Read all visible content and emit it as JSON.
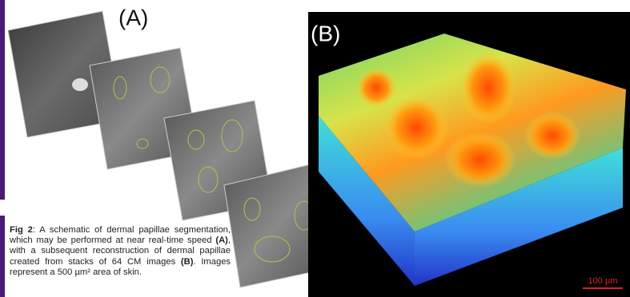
{
  "panel_a": {
    "label": "(A)"
  },
  "panel_b": {
    "label": "(B)",
    "scale_bar": "100 µm"
  },
  "caption": {
    "fig": "Fig 2",
    "text_1": ": A schematic of dermal papillae segmentation, which may be performed at near real-time speed ",
    "ref_a": "(A)",
    "text_2": ", with a subsequent reconstruction of dermal papillae created from stacks of 64 CM images ",
    "ref_b": "(B)",
    "text_3": ". Images represent a 500 µm² area of skin."
  }
}
